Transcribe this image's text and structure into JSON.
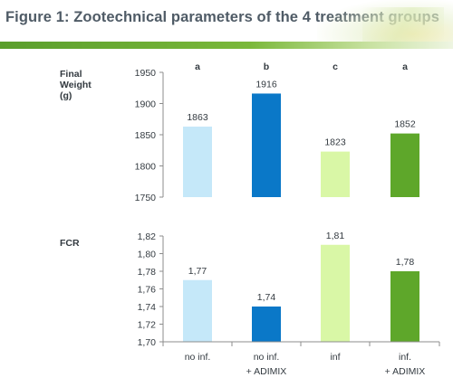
{
  "title": "Figure 1: Zootechnical parameters of the 4 treatment groups",
  "colors": {
    "title_text": "#4f5b66",
    "accent_bar": "#6aab32",
    "bars": [
      "#c5e8f9",
      "#0a78c8",
      "#d9f7a6",
      "#5ea72a"
    ]
  },
  "chart_data": [
    {
      "type": "bar",
      "ylabel": "Final\nWeight\n(g)",
      "categories": [
        "no inf.",
        "no inf. + ADIMIX",
        "inf",
        "inf. + ADIMIX"
      ],
      "values": [
        1863,
        1916,
        1823,
        1852
      ],
      "value_labels": [
        "1863",
        "1916",
        "1823",
        "1852"
      ],
      "significance": [
        "a",
        "b",
        "c",
        "a"
      ],
      "ylim": [
        1750,
        1950
      ],
      "yticks": [
        "1750",
        "1800",
        "1850",
        "1900",
        "1950"
      ],
      "grid": false
    },
    {
      "type": "bar",
      "ylabel": "FCR",
      "categories": [
        "no inf.",
        "no inf. + ADIMIX",
        "inf",
        "inf. + ADIMIX"
      ],
      "category_labels": [
        [
          "no inf."
        ],
        [
          "no inf.",
          "+ ADIMIX"
        ],
        [
          "inf"
        ],
        [
          "inf.",
          "+ ADIMIX"
        ]
      ],
      "values": [
        1.77,
        1.74,
        1.81,
        1.78
      ],
      "value_labels": [
        "1,77",
        "1,74",
        "1,81",
        "1,78"
      ],
      "ylim": [
        1.7,
        1.82
      ],
      "yticks": [
        "1,70",
        "1,72",
        "1,74",
        "1,76",
        "1,78",
        "1,80",
        "1,82"
      ],
      "grid": false
    }
  ]
}
